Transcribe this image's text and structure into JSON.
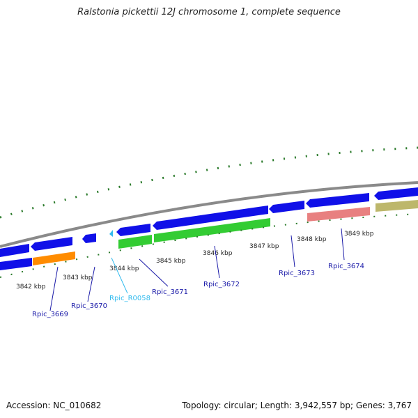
{
  "title": "Ralstonia pickettii 12J chromosome 1, complete sequence",
  "footer": {
    "accession": "Accession: NC_010682",
    "summary": "Topology: circular; Length: 3,942,557 bp; Genes: 3,767"
  },
  "colors": {
    "backbone": "#8a8a8a",
    "cds": "#1010e8",
    "tick": "#2a7a2a",
    "orange": "#ff8c00",
    "green": "#33cc33",
    "salmon": "#e88080",
    "khaki": "#bdb76b",
    "rna": "#33bbee"
  },
  "scale": {
    "labels": [
      {
        "text": "3842 kbp"
      },
      {
        "text": "3843 kbp"
      },
      {
        "text": "3844 kbp"
      },
      {
        "text": "3845 kbp"
      },
      {
        "text": "3846 kbp"
      },
      {
        "text": "3847 kbp"
      },
      {
        "text": "3848 kbp"
      },
      {
        "text": "3849 kbp"
      }
    ]
  },
  "genes": [
    {
      "name": "Rpic_3669",
      "kind": "cds"
    },
    {
      "name": "Rpic_3670",
      "kind": "cds"
    },
    {
      "name": "Rpic_R0058",
      "kind": "rna"
    },
    {
      "name": "Rpic_3671",
      "kind": "cds"
    },
    {
      "name": "Rpic_3672",
      "kind": "cds"
    },
    {
      "name": "Rpic_3673",
      "kind": "cds"
    },
    {
      "name": "Rpic_3674",
      "kind": "cds"
    }
  ]
}
